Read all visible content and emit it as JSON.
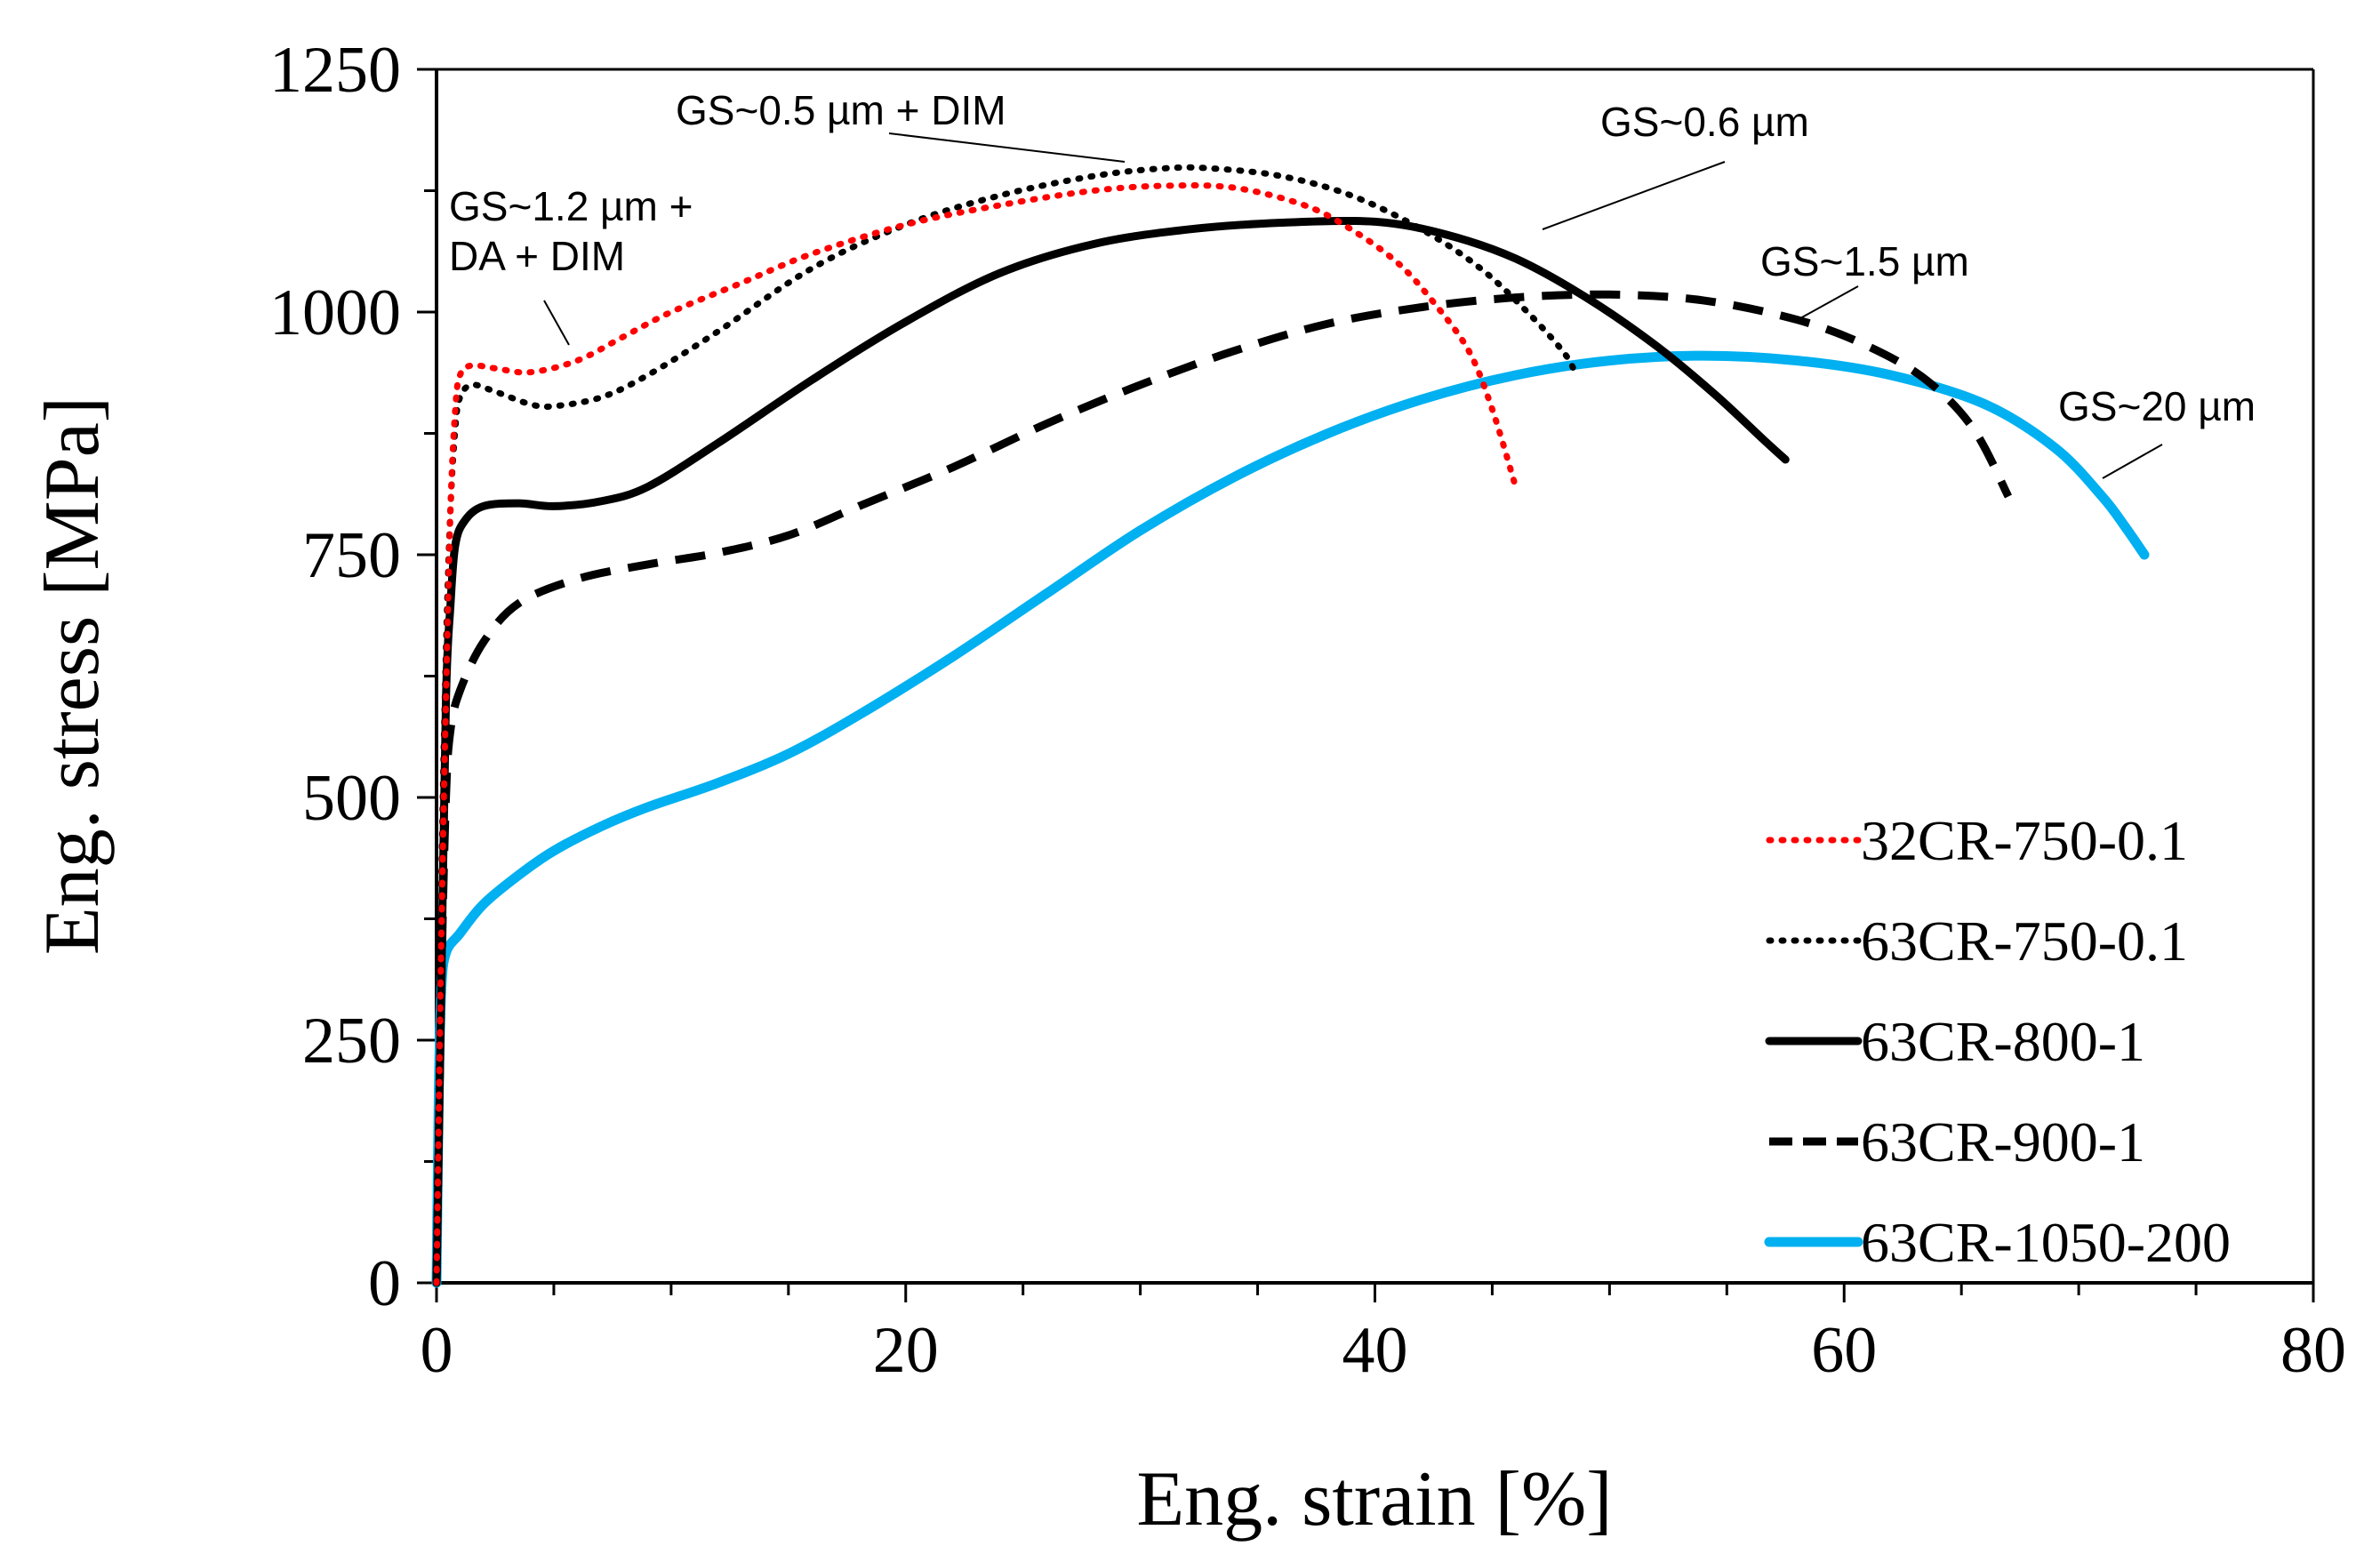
{
  "chart_data": {
    "type": "line",
    "title": "",
    "xlabel": "Eng. strain [%]",
    "ylabel": "Eng. stress [MPa]",
    "xlim": [
      0,
      80
    ],
    "ylim": [
      0,
      1250
    ],
    "xticks": [
      0,
      20,
      40,
      60,
      80
    ],
    "yticks": [
      0,
      250,
      500,
      750,
      1000,
      1250
    ],
    "x_minor_step": 5,
    "y_minor_step": 125,
    "grid": false,
    "legend_position": "bottom-right",
    "series": [
      {
        "name": "32CR-750-0.1",
        "color": "#ff0000",
        "style": "dotted",
        "points": [
          [
            0,
            0
          ],
          [
            0.2,
            350
          ],
          [
            0.4,
            600
          ],
          [
            0.6,
            800
          ],
          [
            0.8,
            900
          ],
          [
            1.0,
            935
          ],
          [
            1.5,
            945
          ],
          [
            2.5,
            942
          ],
          [
            4,
            938
          ],
          [
            6,
            950
          ],
          [
            8,
            975
          ],
          [
            10,
            1000
          ],
          [
            13,
            1030
          ],
          [
            16,
            1060
          ],
          [
            20,
            1090
          ],
          [
            24,
            1110
          ],
          [
            28,
            1125
          ],
          [
            31,
            1130
          ],
          [
            34,
            1128
          ],
          [
            37,
            1110
          ],
          [
            39,
            1085
          ],
          [
            41,
            1050
          ],
          [
            42.5,
            1010
          ],
          [
            44,
            960
          ],
          [
            45,
            900
          ],
          [
            46,
            820
          ]
        ]
      },
      {
        "name": "63CR-750-0.1",
        "color": "#000000",
        "style": "dotted",
        "points": [
          [
            0,
            0
          ],
          [
            0.2,
            400
          ],
          [
            0.4,
            650
          ],
          [
            0.6,
            800
          ],
          [
            0.8,
            880
          ],
          [
            1.0,
            912
          ],
          [
            1.5,
            925
          ],
          [
            2.5,
            918
          ],
          [
            4,
            905
          ],
          [
            5,
            903
          ],
          [
            7,
            912
          ],
          [
            9,
            935
          ],
          [
            12,
            980
          ],
          [
            16,
            1045
          ],
          [
            20,
            1090
          ],
          [
            24,
            1120
          ],
          [
            28,
            1140
          ],
          [
            31,
            1148
          ],
          [
            33,
            1148
          ],
          [
            36,
            1140
          ],
          [
            39,
            1120
          ],
          [
            42,
            1085
          ],
          [
            44.5,
            1045
          ],
          [
            46.5,
            1000
          ],
          [
            48,
            960
          ],
          [
            48.5,
            940
          ]
        ]
      },
      {
        "name": "63CR-800-1",
        "color": "#000000",
        "style": "solid",
        "points": [
          [
            0,
            0
          ],
          [
            0.2,
            300
          ],
          [
            0.4,
            600
          ],
          [
            0.6,
            700
          ],
          [
            0.8,
            760
          ],
          [
            1.2,
            785
          ],
          [
            2,
            800
          ],
          [
            3.5,
            803
          ],
          [
            5,
            800
          ],
          [
            7,
            805
          ],
          [
            9,
            820
          ],
          [
            12,
            865
          ],
          [
            16,
            930
          ],
          [
            20,
            990
          ],
          [
            24,
            1040
          ],
          [
            28,
            1070
          ],
          [
            32,
            1085
          ],
          [
            36,
            1092
          ],
          [
            40,
            1093
          ],
          [
            43,
            1080
          ],
          [
            46,
            1055
          ],
          [
            49,
            1015
          ],
          [
            52,
            965
          ],
          [
            54.5,
            915
          ],
          [
            56.5,
            870
          ],
          [
            57.5,
            848
          ]
        ]
      },
      {
        "name": "63CR-900-1",
        "color": "#000000",
        "style": "dashed",
        "points": [
          [
            0,
            0
          ],
          [
            0.2,
            300
          ],
          [
            0.4,
            500
          ],
          [
            0.6,
            570
          ],
          [
            1,
            610
          ],
          [
            2,
            660
          ],
          [
            3.5,
            700
          ],
          [
            6,
            725
          ],
          [
            9,
            740
          ],
          [
            12,
            752
          ],
          [
            15,
            770
          ],
          [
            18,
            800
          ],
          [
            22,
            840
          ],
          [
            26,
            885
          ],
          [
            30,
            925
          ],
          [
            34,
            960
          ],
          [
            38,
            988
          ],
          [
            42,
            1005
          ],
          [
            46,
            1015
          ],
          [
            50,
            1018
          ],
          [
            54,
            1012
          ],
          [
            58,
            992
          ],
          [
            61,
            965
          ],
          [
            63.5,
            930
          ],
          [
            65.5,
            880
          ],
          [
            67,
            810
          ]
        ]
      },
      {
        "name": "63CR-1050-200",
        "color": "#00b0f0",
        "style": "solid",
        "points": [
          [
            0,
            0
          ],
          [
            0.1,
            200
          ],
          [
            0.2,
            300
          ],
          [
            0.4,
            340
          ],
          [
            1,
            360
          ],
          [
            2,
            390
          ],
          [
            3.5,
            420
          ],
          [
            5,
            445
          ],
          [
            7,
            470
          ],
          [
            9,
            490
          ],
          [
            12,
            515
          ],
          [
            15,
            545
          ],
          [
            18,
            585
          ],
          [
            22,
            645
          ],
          [
            26,
            710
          ],
          [
            30,
            775
          ],
          [
            34,
            830
          ],
          [
            38,
            875
          ],
          [
            42,
            910
          ],
          [
            46,
            935
          ],
          [
            50,
            950
          ],
          [
            54,
            955
          ],
          [
            58,
            950
          ],
          [
            62,
            935
          ],
          [
            66,
            905
          ],
          [
            69,
            860
          ],
          [
            71,
            810
          ],
          [
            72,
            778
          ],
          [
            72.8,
            750
          ]
        ]
      }
    ],
    "annotations": [
      {
        "lines": [
          "GS~1.2 µm +",
          "DA + DIM"
        ]
      },
      {
        "lines": [
          "GS~0.5 µm + DIM"
        ]
      },
      {
        "lines": [
          "GS~0.6 µm"
        ]
      },
      {
        "lines": [
          "GS~1.5 µm"
        ]
      },
      {
        "lines": [
          "GS~20 µm"
        ]
      }
    ]
  }
}
